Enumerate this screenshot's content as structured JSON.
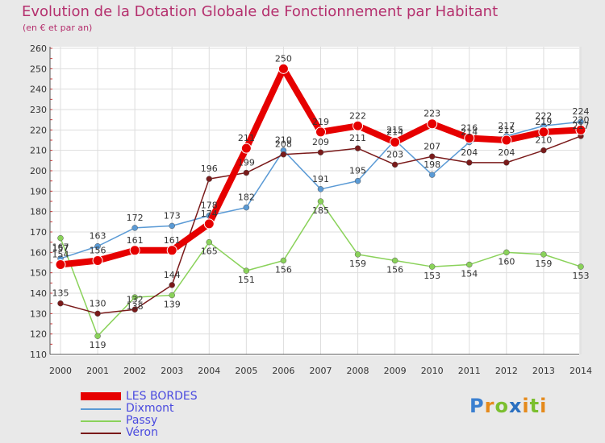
{
  "title": "Evolution de la Dotation Globale de Fonctionnement par Habitant",
  "subtitle": "(en € et par an)",
  "logo": {
    "text": "Proxiti",
    "letters": [
      "P",
      "r",
      "o",
      "x",
      "i",
      "t",
      "i"
    ],
    "colors": [
      "#3a7fd0",
      "#e58a1c",
      "#7bbf2f",
      "#2a6fc0",
      "#e58a1c",
      "#7bbf2f",
      "#e58a1c"
    ]
  },
  "colors": {
    "background": "#e9e9e9",
    "plot_background": "#ffffff",
    "grid": "#dddddd",
    "title": "#b5306e",
    "axis_text": "#333333",
    "legend_text": "#4a4adf"
  },
  "chart_data": {
    "type": "line",
    "x": [
      "2000",
      "2001",
      "2002",
      "2003",
      "2004",
      "2005",
      "2006",
      "2007",
      "2008",
      "2009",
      "2010",
      "2011",
      "2012",
      "2013",
      "2014"
    ],
    "ylim": [
      110,
      260
    ],
    "yticks": [
      110,
      120,
      130,
      140,
      150,
      160,
      170,
      180,
      190,
      200,
      210,
      220,
      230,
      240,
      250,
      260
    ],
    "grid": true,
    "legend_position": "bottom-left",
    "series": [
      {
        "name": "LES BORDES",
        "color": "#e60000",
        "values": [
          154,
          156,
          161,
          161,
          174,
          211,
          250,
          219,
          222,
          214,
          223,
          216,
          215,
          219,
          220
        ],
        "labels": [
          "154",
          "156",
          "161",
          "161",
          "174",
          "211",
          "250",
          "219",
          "222",
          "214",
          "223",
          "216",
          "215",
          "219",
          "220"
        ]
      },
      {
        "name": "Dixmont",
        "color": "#5a9ad5",
        "values": [
          157,
          163,
          172,
          173,
          178,
          182,
          210,
          191,
          195,
          215,
          198,
          214,
          217,
          222,
          224
        ],
        "labels": [
          "157",
          "163",
          "172",
          "173",
          "178",
          "182",
          "210",
          "191",
          "195",
          "215",
          "198",
          "214",
          "217",
          "222",
          "224"
        ]
      },
      {
        "name": "Passy",
        "color": "#8ad25a",
        "values": [
          167,
          119,
          138,
          139,
          165,
          151,
          156,
          185,
          159,
          156,
          153,
          154,
          160,
          159,
          153
        ],
        "labels": [
          "167",
          "119",
          "138",
          "139",
          "165",
          "151",
          "156",
          "185",
          "159",
          "156",
          "153",
          "154",
          "160",
          "159",
          "153"
        ]
      },
      {
        "name": "Véron",
        "color": "#7a1a1a",
        "values": [
          135,
          130,
          132,
          144,
          196,
          199,
          208,
          209,
          211,
          203,
          207,
          204,
          204,
          210,
          217
        ],
        "labels": [
          "135",
          "130",
          "132",
          "144",
          "196",
          "199",
          "208",
          "209",
          "211",
          "203",
          "207",
          "204",
          "204",
          "210",
          "217"
        ]
      }
    ]
  }
}
